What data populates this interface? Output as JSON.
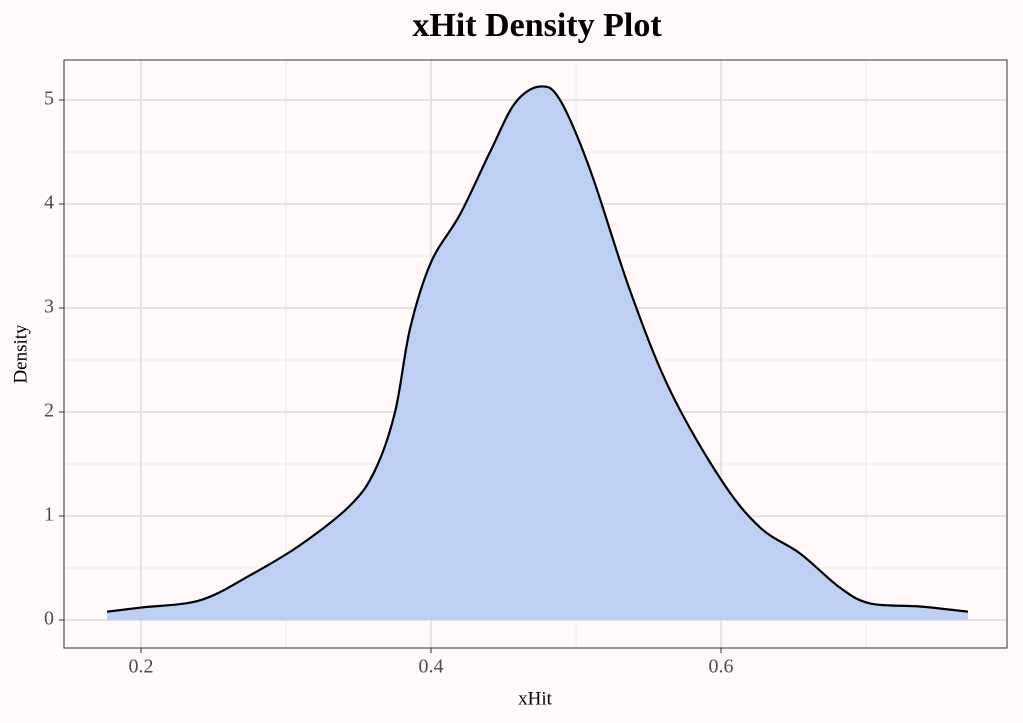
{
  "chart_data": {
    "type": "density",
    "title": "xHit Density Plot",
    "x_label": "xHit",
    "y_label": "Density",
    "x": [
      0.1766,
      0.2,
      0.2407,
      0.2752,
      0.3097,
      0.3441,
      0.3614,
      0.3752,
      0.3855,
      0.4,
      0.42,
      0.4407,
      0.4579,
      0.4752,
      0.489,
      0.5097,
      0.5372,
      0.5648,
      0.6,
      0.6269,
      0.6545,
      0.6821,
      0.7028,
      0.7372,
      0.7703
    ],
    "values": [
      0.08,
      0.12,
      0.19,
      0.43,
      0.72,
      1.1,
      1.44,
      2.0,
      2.8,
      3.44,
      3.9,
      4.5,
      4.97,
      5.13,
      5.0,
      4.33,
      3.17,
      2.21,
      1.35,
      0.89,
      0.64,
      0.31,
      0.16,
      0.13,
      0.08
    ],
    "fill_color": "#b9cef3",
    "line_color": "#000000",
    "xlim": [
      0.1469,
      0.7972
    ],
    "ylim": [
      -0.269,
      5.385
    ],
    "xticks": [
      0.2,
      0.4,
      0.6
    ],
    "yticks": [
      0,
      1,
      2,
      3,
      4,
      5
    ],
    "x_minor_grid": [
      0.3,
      0.5,
      0.7
    ],
    "y_minor_grid": [
      0.5,
      1.5,
      2.5,
      3.5,
      4.5
    ],
    "grid": true
  }
}
